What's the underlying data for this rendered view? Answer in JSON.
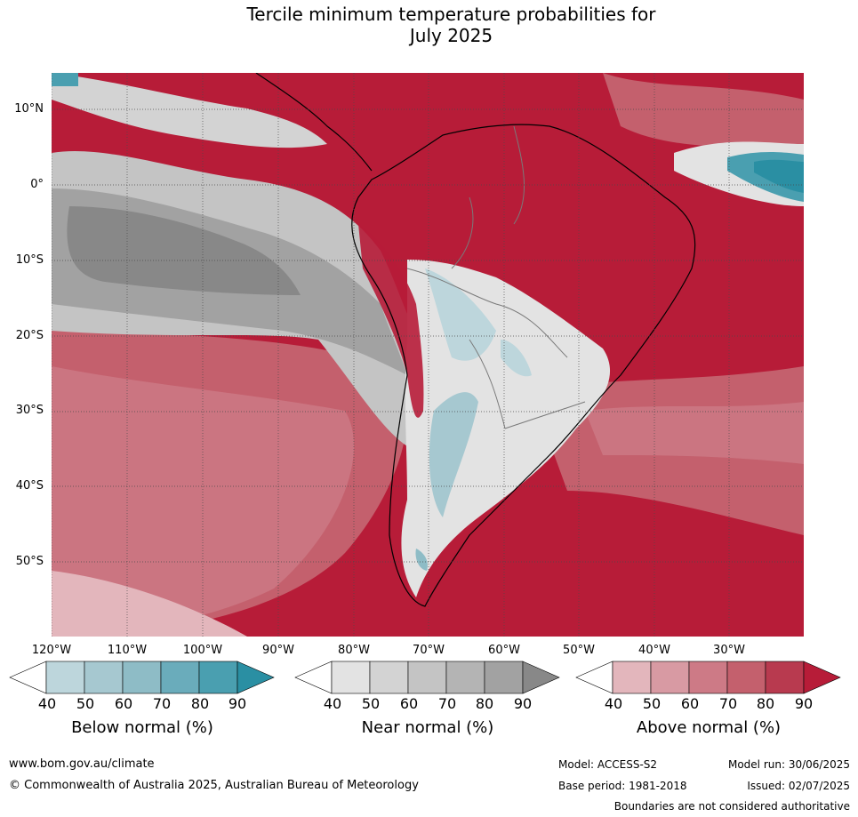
{
  "title_line1": "Tercile minimum temperature probabilities for",
  "title_line2": "July 2025",
  "lat_labels": [
    "10°N",
    "0°",
    "10°S",
    "20°S",
    "30°S",
    "40°S",
    "50°S"
  ],
  "lon_labels": [
    "120°W",
    "110°W",
    "100°W",
    "90°W",
    "80°W",
    "70°W",
    "60°W",
    "50°W",
    "40°W",
    "30°W"
  ],
  "colorbars": [
    {
      "label": "Below normal (%)",
      "ticks": [
        "40",
        "50",
        "60",
        "70",
        "80",
        "90"
      ],
      "colors": [
        "#bdd6dc",
        "#a6c8d0",
        "#8ebcc6",
        "#6aacbb",
        "#4a9fb0",
        "#2a8fa3"
      ]
    },
    {
      "label": "Near normal (%)",
      "ticks": [
        "40",
        "50",
        "60",
        "70",
        "80",
        "90"
      ],
      "colors": [
        "#e3e3e3",
        "#d3d3d3",
        "#c4c4c4",
        "#b4b4b4",
        "#a2a2a2",
        "#888888"
      ]
    },
    {
      "label": "Above normal (%)",
      "ticks": [
        "40",
        "50",
        "60",
        "70",
        "80",
        "90"
      ],
      "colors": [
        "#e3b6bc",
        "#d89aa3",
        "#cd7a86",
        "#c4606d",
        "#b83a4f",
        "#b71c38"
      ]
    }
  ],
  "footer": {
    "url": "www.bom.gov.au/climate",
    "copyright": "© Commonwealth of Australia 2025, Australian Bureau of Meteorology",
    "model": "Model: ACCESS-S2",
    "base_period": "Base period: 1981-2018",
    "model_run": "Model run: 30/06/2025",
    "issued": "Issued: 02/07/2025",
    "disclaimer": "Boundaries are not considered authoritative"
  }
}
